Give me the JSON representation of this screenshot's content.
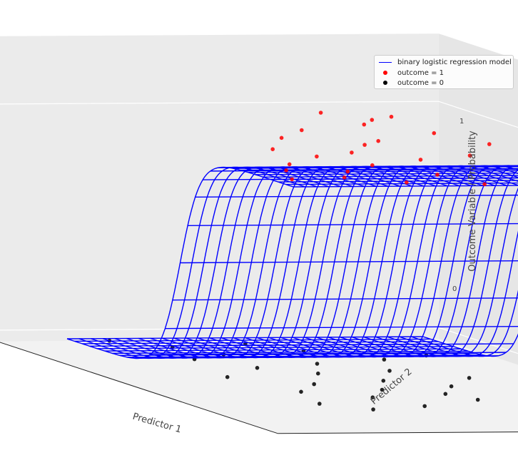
{
  "chart_data": {
    "type": "surface3d",
    "title": "",
    "xlabel": "Predictor 1",
    "ylabel": "Predictor 2",
    "zlabel": "Outcome Variable / Probability",
    "zticks": [
      "0",
      "1"
    ],
    "xlim": [
      0,
      1
    ],
    "ylim": [
      0,
      1
    ],
    "zlim": [
      0,
      1
    ],
    "grid": true,
    "legend_position": "top-right",
    "model": {
      "name": "binary logistic regression model",
      "form": "logistic",
      "x_midpoint": 0.5,
      "steepness": 22,
      "color": "#0000ff",
      "grid_lines": 30
    },
    "series": [
      {
        "name": "outcome = 1",
        "color": "#ff0000",
        "z": 1,
        "points": [
          [
            0.02,
            0.7
          ],
          [
            0.08,
            0.86
          ],
          [
            0.12,
            0.78
          ],
          [
            0.18,
            0.72
          ],
          [
            0.25,
            0.5
          ],
          [
            0.3,
            0.84
          ],
          [
            0.35,
            0.38
          ],
          [
            0.4,
            0.62
          ],
          [
            0.45,
            0.55
          ],
          [
            0.5,
            0.26
          ],
          [
            0.55,
            0.45
          ],
          [
            0.6,
            0.32
          ],
          [
            0.65,
            0.58
          ],
          [
            0.7,
            0.18
          ],
          [
            0.72,
            0.4
          ],
          [
            0.78,
            0.12
          ],
          [
            0.8,
            0.28
          ],
          [
            0.85,
            0.5
          ],
          [
            0.88,
            0.22
          ],
          [
            0.92,
            0.7
          ],
          [
            0.95,
            0.35
          ],
          [
            0.98,
            0.55
          ],
          [
            0.6,
            0.75
          ],
          [
            0.45,
            0.9
          ],
          [
            0.9,
            0.06
          ]
        ]
      },
      {
        "name": "outcome = 0",
        "color": "#000000",
        "z": 0,
        "points": [
          [
            0.03,
            0.1
          ],
          [
            0.08,
            0.45
          ],
          [
            0.12,
            0.22
          ],
          [
            0.18,
            0.55
          ],
          [
            0.22,
            0.3
          ],
          [
            0.28,
            0.18
          ],
          [
            0.3,
            0.7
          ],
          [
            0.35,
            0.48
          ],
          [
            0.4,
            0.28
          ],
          [
            0.45,
            0.62
          ],
          [
            0.48,
            0.4
          ],
          [
            0.52,
            0.12
          ],
          [
            0.55,
            0.78
          ],
          [
            0.58,
            0.52
          ],
          [
            0.62,
            0.3
          ],
          [
            0.66,
            0.66
          ],
          [
            0.7,
            0.44
          ],
          [
            0.72,
            0.2
          ],
          [
            0.76,
            0.58
          ],
          [
            0.8,
            0.35
          ],
          [
            0.84,
            0.62
          ],
          [
            0.88,
            0.15
          ],
          [
            0.92,
            0.42
          ],
          [
            0.96,
            0.25
          ],
          [
            0.25,
            0.85
          ]
        ]
      }
    ]
  }
}
